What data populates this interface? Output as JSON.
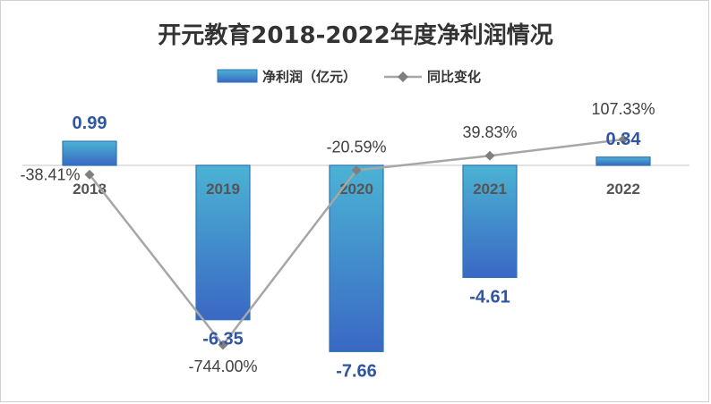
{
  "chart_data": {
    "type": "bar",
    "title": "开元教育2018-2022年度净利润情况",
    "categories": [
      "2018",
      "2019",
      "2020",
      "2021",
      "2022"
    ],
    "series": [
      {
        "name": "净利润（亿元）",
        "type": "bar",
        "axis": "left",
        "values": [
          0.99,
          -6.35,
          -7.66,
          -4.61,
          0.34
        ]
      },
      {
        "name": "同比变化",
        "type": "line",
        "axis": "right",
        "values": [
          -38.41,
          -744.0,
          -20.59,
          39.83,
          107.33
        ],
        "unit": "%"
      }
    ],
    "bar_labels": [
      "0.99",
      "-6.35",
      "-7.66",
      "-4.61",
      "0.34"
    ],
    "line_labels": [
      "-38.41%",
      "-744.00%",
      "-20.59%",
      "39.83%",
      "107.33%"
    ],
    "ylim": [
      -8,
      1
    ],
    "y2lim": [
      -800,
      200
    ],
    "grid": false,
    "legend_position": "top",
    "colors": {
      "bar_top": "#4bb3d3",
      "bar_bottom": "#3a68c4",
      "bar_border": "#2e75b6",
      "line": "#a6a6a6",
      "marker": "#7f7f7f",
      "bar_label": "#2f55a3",
      "axis": "#d9d9d9"
    }
  }
}
